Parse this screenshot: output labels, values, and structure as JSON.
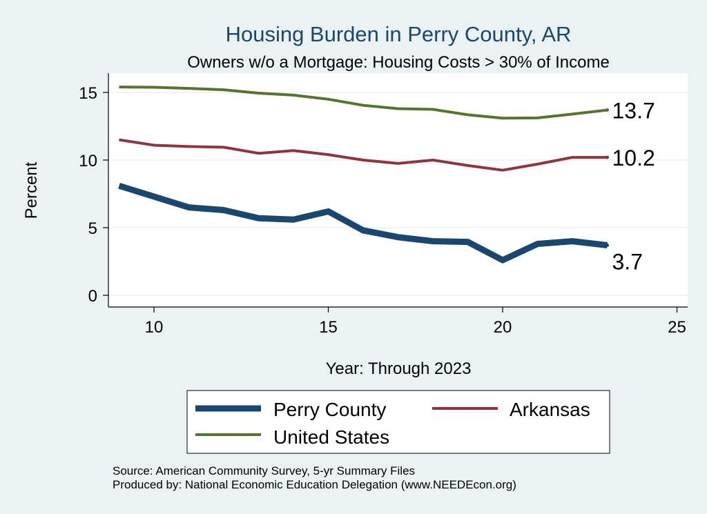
{
  "chart_data": {
    "type": "line",
    "title": "Housing Burden in Perry County, AR",
    "subtitle": "Owners w/o a Mortgage: Housing Costs > 30% of Income",
    "xlabel": "Year: Through 2023",
    "ylabel": "Percent",
    "xlim": [
      9,
      25
    ],
    "ylim": [
      0,
      15.5
    ],
    "x_ticks": [
      10,
      15,
      20,
      25
    ],
    "y_ticks": [
      0,
      5,
      10,
      15
    ],
    "grid": true,
    "x": [
      9,
      10,
      11,
      12,
      13,
      14,
      15,
      16,
      17,
      18,
      19,
      20,
      21,
      22,
      23
    ],
    "series": [
      {
        "name": "Perry County",
        "color": "#1a476f",
        "values": [
          8.1,
          7.3,
          6.5,
          6.3,
          5.7,
          5.6,
          6.2,
          4.8,
          4.3,
          4.0,
          3.95,
          2.6,
          3.8,
          4.0,
          3.7
        ],
        "end_label": "3.7"
      },
      {
        "name": "Arkansas",
        "color": "#90353b",
        "values": [
          11.5,
          11.1,
          11.0,
          10.95,
          10.5,
          10.7,
          10.4,
          10.0,
          9.75,
          10.0,
          9.6,
          9.25,
          9.7,
          10.2,
          10.2
        ],
        "end_label": "10.2"
      },
      {
        "name": "United States",
        "color": "#55752f",
        "values": [
          15.4,
          15.38,
          15.3,
          15.2,
          14.95,
          14.8,
          14.5,
          14.05,
          13.8,
          13.75,
          13.35,
          13.1,
          13.12,
          13.4,
          13.7
        ],
        "end_label": "13.7"
      }
    ],
    "legend": {
      "placement": "bottom",
      "entries": [
        "Perry County",
        "Arkansas",
        "United States"
      ]
    }
  },
  "source_line_1": "Source: American Community Survey, 5-yr Summary Files",
  "source_line_2": "Produced by: National Economic Education Delegation (www.NEEDEcon.org)"
}
